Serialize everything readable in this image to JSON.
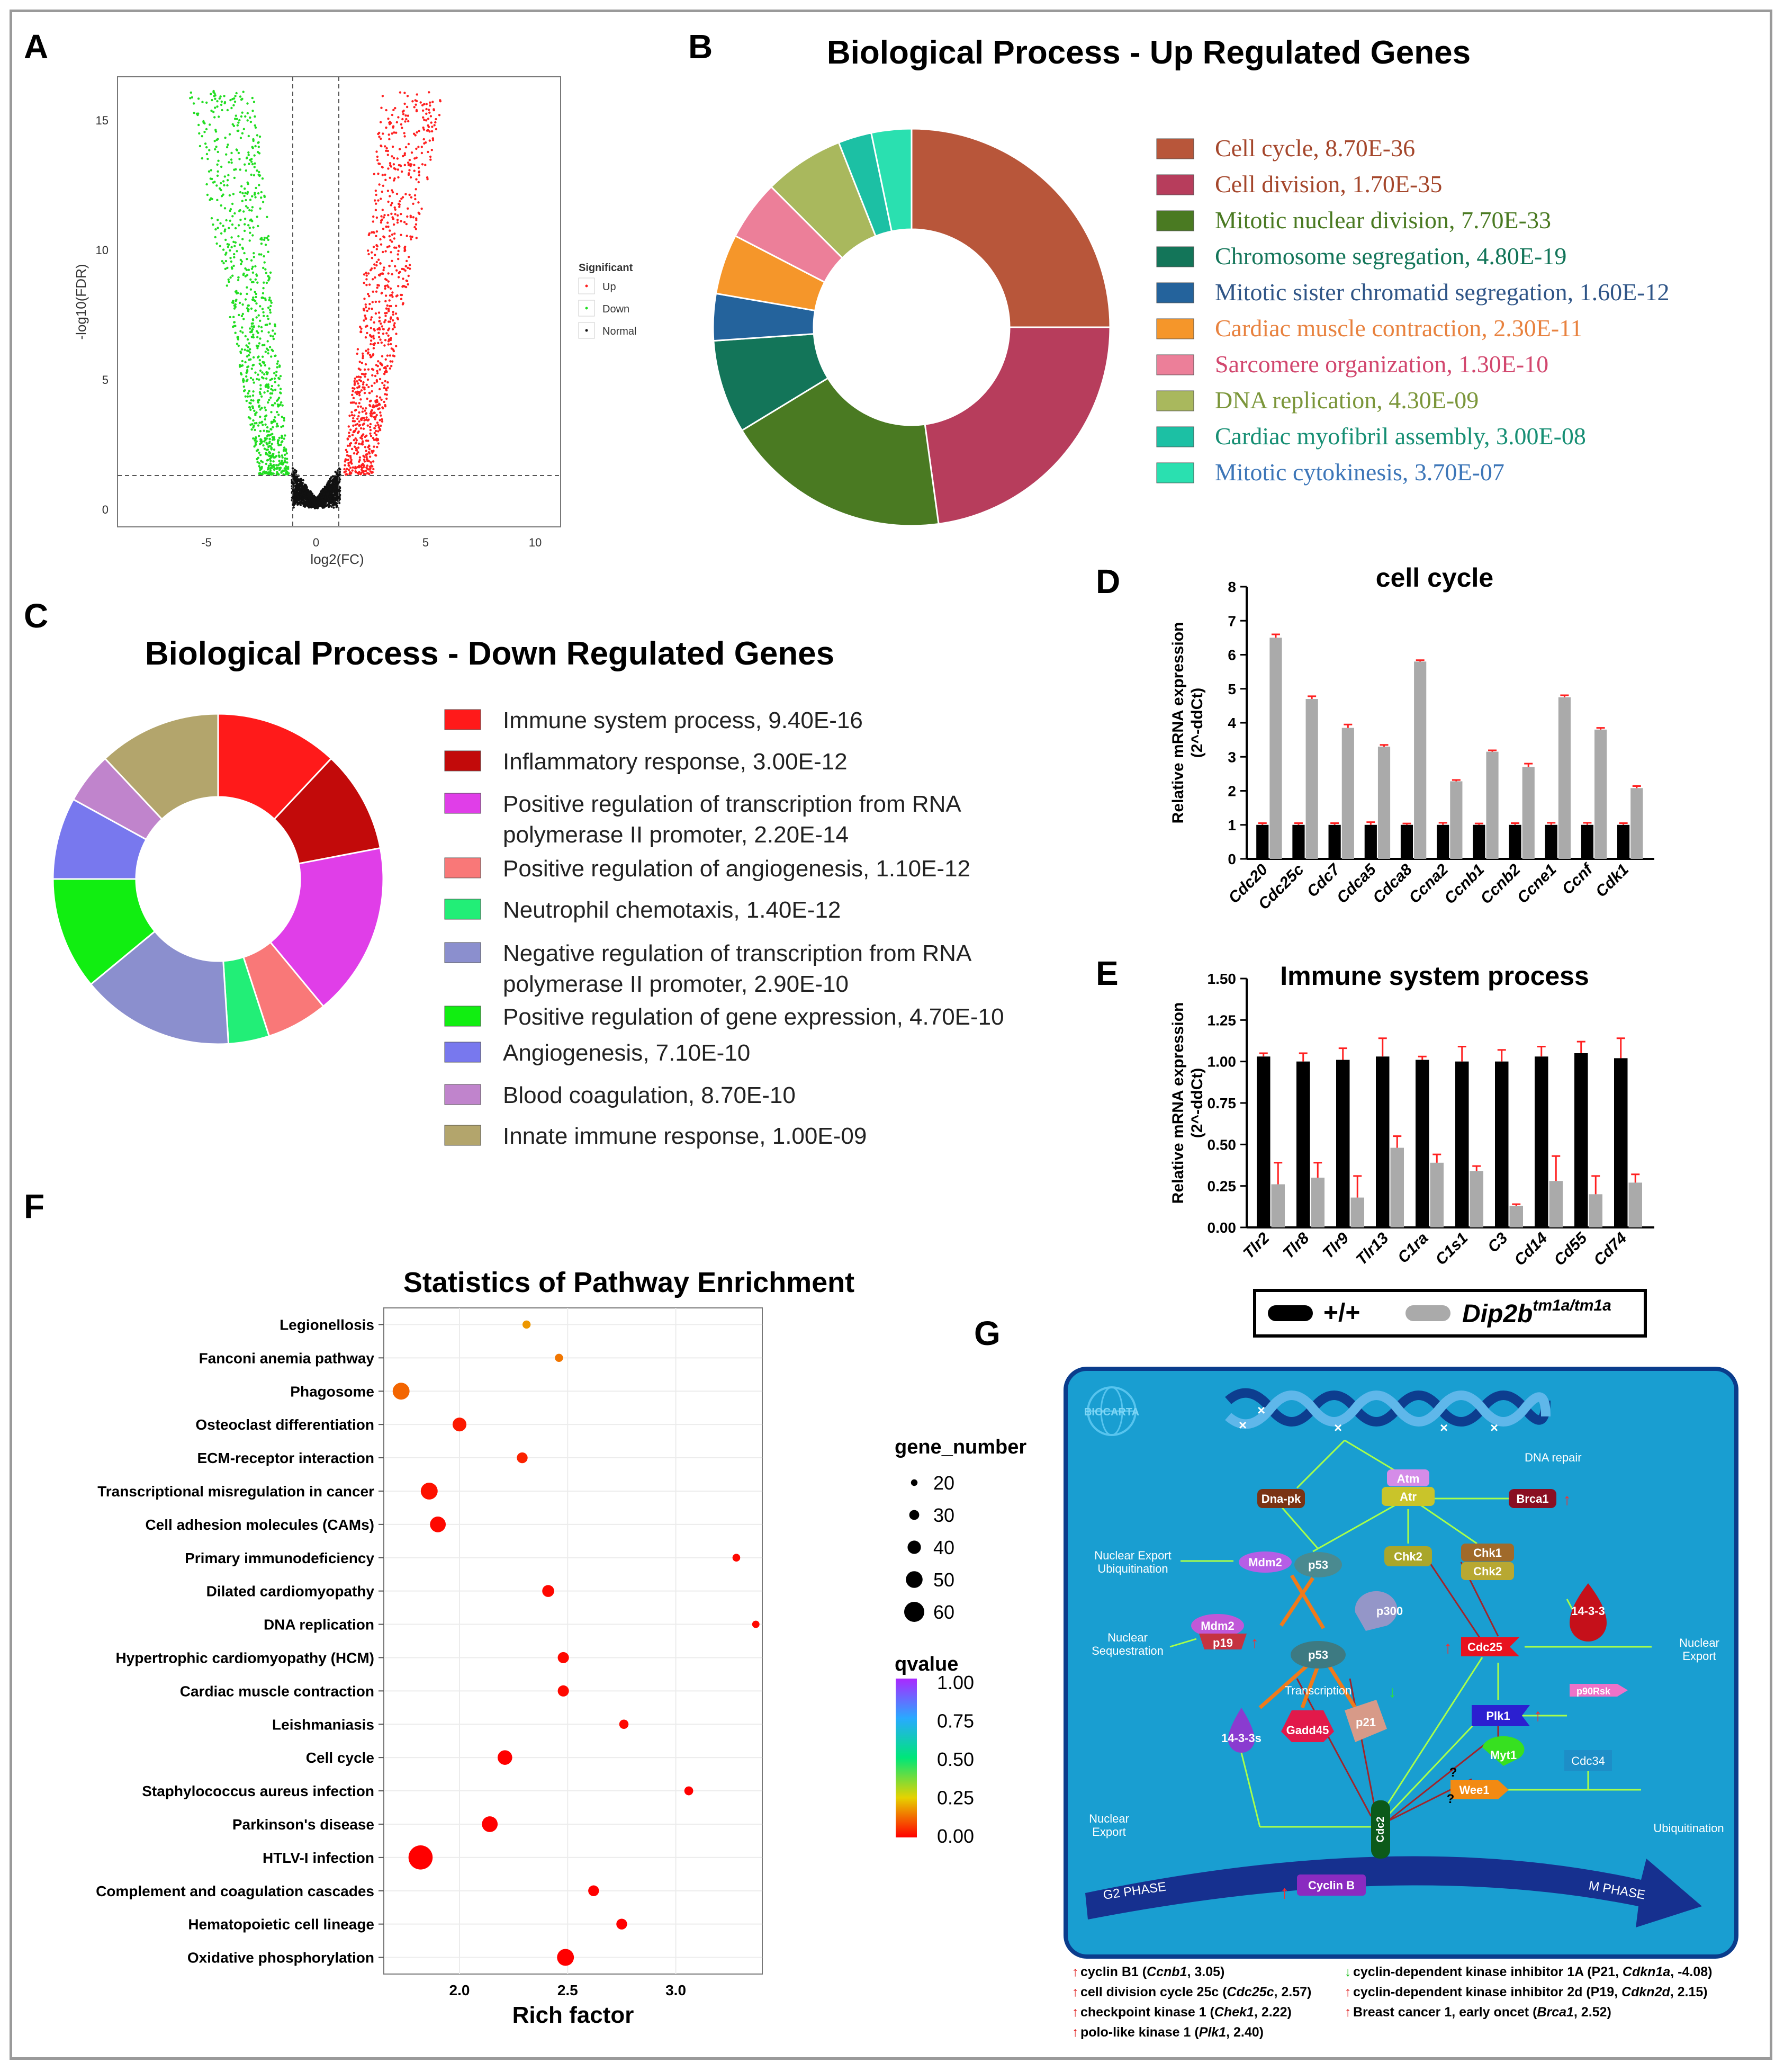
{
  "panels": {
    "a": "A",
    "b": "B",
    "c": "C",
    "d": "D",
    "e": "E",
    "f": "F",
    "g": "G"
  },
  "volcano": {
    "xlabel": "log2(FC)",
    "ylabel": "-log10(FDR)",
    "xticks": [
      "-5",
      "0",
      "5",
      "10"
    ],
    "yticks": [
      "0",
      "5",
      "10",
      "15"
    ],
    "legend_title": "Significant",
    "legend": [
      "Up",
      "Down",
      "Normal"
    ],
    "colors": {
      "up": "#ff2020",
      "down": "#22dd22",
      "normal": "#111111"
    }
  },
  "donut_up": {
    "title": "Biological Process - Up Regulated Genes",
    "items": [
      {
        "label": "Cell cycle, 8.70E-36",
        "value": 23,
        "color": "#b8563a",
        "text_color": "#a5472c"
      },
      {
        "label": "Cell division, 1.70E-35",
        "value": 21,
        "color": "#b73d5c",
        "text_color": "#a5472c"
      },
      {
        "label": "Mitotic nuclear division, 7.70E-33",
        "value": 17,
        "color": "#4a7a22",
        "text_color": "#4a7a22"
      },
      {
        "label": "Chromosome segregation, 4.80E-19",
        "value": 7,
        "color": "#137559",
        "text_color": "#137559"
      },
      {
        "label": "Mitotic sister chromatid segregation, 1.60E-12",
        "value": 3.5,
        "color": "#24639c",
        "text_color": "#2f5587"
      },
      {
        "label": "Cardiac muscle contraction, 2.30E-11",
        "value": 4.5,
        "color": "#f5962a",
        "text_color": "#e8823f"
      },
      {
        "label": "Sarcomere organization, 1.30E-10",
        "value": 4.5,
        "color": "#ec7f99",
        "text_color": "#d2476e"
      },
      {
        "label": "DNA replication, 4.30E-09",
        "value": 6,
        "color": "#a9b85d",
        "text_color": "#7b963a"
      },
      {
        "label": "Cardiac myofibril assembly, 3.00E-08",
        "value": 2.5,
        "color": "#1cc0a4",
        "text_color": "#178f74"
      },
      {
        "label": "Mitotic cytokinesis, 3.70E-07",
        "value": 3,
        "color": "#2ae0b0",
        "text_color": "#3d76b8"
      }
    ]
  },
  "donut_down": {
    "title": "Biological Process - Down Regulated Genes",
    "items": [
      {
        "label": "Immune system process, 9.40E-16",
        "value": 12,
        "color": "#ff1a1a"
      },
      {
        "label": "Inflammatory response, 3.00E-12",
        "value": 10,
        "color": "#c20a0a"
      },
      {
        "label": "Positive regulation of transcription from RNA polymerase II promoter, 2.20E-14",
        "value": 17,
        "color": "#e03ee8"
      },
      {
        "label": "Positive regulation of angiogenesis, 1.10E-12",
        "value": 6,
        "color": "#f97878"
      },
      {
        "label": "Neutrophil chemotaxis, 1.40E-12",
        "value": 4,
        "color": "#22ee77"
      },
      {
        "label": "Negative regulation of transcription from RNA polymerase II promoter, 2.90E-10",
        "value": 15,
        "color": "#8b8fce"
      },
      {
        "label": "Positive regulation of gene expression, 4.70E-10",
        "value": 11,
        "color": "#11ee11"
      },
      {
        "label": "Angiogenesis, 7.10E-10",
        "value": 8,
        "color": "#7878ee"
      },
      {
        "label": "Blood coagulation, 8.70E-10",
        "value": 5,
        "color": "#c084cc"
      },
      {
        "label": "Innate immune response, 1.00E-09",
        "value": 12,
        "color": "#b3a56c"
      }
    ],
    "label_lines": [
      [
        "Immune system process, 9.40E-16"
      ],
      [
        "Inflammatory response, 3.00E-12"
      ],
      [
        "Positive regulation of transcription from RNA",
        "polymerase II promoter, 2.20E-14"
      ],
      [
        "Positive regulation of angiogenesis, 1.10E-12"
      ],
      [
        "Neutrophil chemotaxis, 1.40E-12"
      ],
      [
        "Negative regulation of transcription from RNA",
        "polymerase II promoter, 2.90E-10"
      ],
      [
        "Positive regulation of gene expression, 4.70E-10"
      ],
      [
        "Angiogenesis, 7.10E-10"
      ],
      [
        "Blood coagulation, 8.70E-10"
      ],
      [
        "Innate immune response, 1.00E-09"
      ]
    ]
  },
  "chart_data": [
    {
      "type": "bar",
      "title": "cell cycle",
      "ylabel": "Relative mRNA expression (2^-ddCt)",
      "ylabel_lines": [
        "Relative mRNA expression",
        "(2^-ddCt)"
      ],
      "ylim": [
        0,
        8
      ],
      "yticks": [
        0,
        1,
        2,
        3,
        4,
        5,
        6,
        7,
        8
      ],
      "categories": [
        "Cdc20",
        "Cdc25c",
        "Cdc7",
        "Cdca5",
        "Cdca8",
        "Ccna2",
        "Ccnb1",
        "Ccnb2",
        "Ccne1",
        "Ccnf",
        "Cdk1"
      ],
      "series": [
        {
          "name": "+/+",
          "values": [
            1,
            1,
            1,
            1,
            1,
            1,
            1,
            1,
            1,
            1,
            1
          ],
          "err": [
            0.05,
            0.05,
            0.05,
            0.08,
            0.04,
            0.06,
            0.04,
            0.05,
            0.06,
            0.06,
            0.05
          ]
        },
        {
          "name": "Dip2b tm1a/tm1a",
          "values": [
            6.5,
            4.7,
            3.85,
            3.3,
            5.8,
            2.28,
            3.15,
            2.7,
            4.75,
            3.8,
            2.08
          ],
          "err": [
            0.1,
            0.08,
            0.1,
            0.05,
            0.04,
            0.04,
            0.04,
            0.1,
            0.06,
            0.05,
            0.06
          ]
        }
      ]
    },
    {
      "type": "bar",
      "title": "Immune system process",
      "ylabel": "Relative mRNA expression (2^-ddCt)",
      "ylabel_lines": [
        "Relative mRNA expression",
        "(2^-ddCt)"
      ],
      "ylim": [
        0,
        1.5
      ],
      "yticks": [
        "0.00",
        "0.25",
        "0.50",
        "0.75",
        "1.00",
        "1.25",
        "1.50"
      ],
      "categories": [
        "Tlr2",
        "Tlr8",
        "Tlr9",
        "Tlr13",
        "C1ra",
        "C1s1",
        "C3",
        "Cd14",
        "Cd55",
        "Cd74"
      ],
      "series": [
        {
          "name": "+/+",
          "values": [
            1.03,
            1.0,
            1.01,
            1.03,
            1.01,
            1.0,
            1.0,
            1.03,
            1.05,
            1.02
          ],
          "err": [
            0.02,
            0.05,
            0.07,
            0.11,
            0.02,
            0.09,
            0.07,
            0.06,
            0.07,
            0.12
          ]
        },
        {
          "name": "Dip2b tm1a/tm1a",
          "values": [
            0.26,
            0.3,
            0.18,
            0.48,
            0.39,
            0.34,
            0.13,
            0.28,
            0.2,
            0.27
          ],
          "err": [
            0.13,
            0.09,
            0.13,
            0.07,
            0.05,
            0.03,
            0.01,
            0.15,
            0.11,
            0.05
          ]
        }
      ]
    },
    {
      "type": "scatter",
      "title": "Statistics of Pathway Enrichment",
      "xlabel": "Rich factor",
      "xlim": [
        1.65,
        3.4
      ],
      "xticks": [
        "2.0",
        "2.5",
        "3.0"
      ],
      "size_legend_title": "gene_number",
      "size_legend": [
        20,
        30,
        40,
        50,
        60
      ],
      "color_legend_title": "qvalue",
      "color_ticks": [
        "1.00",
        "0.75",
        "0.50",
        "0.25",
        "0.00"
      ],
      "points": [
        {
          "term": "Legionellosis",
          "x": 2.31,
          "size": 13,
          "q": 0.18
        },
        {
          "term": "Fanconi anemia pathway",
          "x": 2.46,
          "size": 13,
          "q": 0.14
        },
        {
          "term": "Phagosome",
          "x": 1.73,
          "size": 36,
          "q": 0.12
        },
        {
          "term": "Osteoclast differentiation",
          "x": 2.0,
          "size": 28,
          "q": 0.03
        },
        {
          "term": "ECM-receptor interaction",
          "x": 2.29,
          "size": 20,
          "q": 0.04
        },
        {
          "term": "Transcriptional misregulation in cancer",
          "x": 1.86,
          "size": 36,
          "q": 0.02
        },
        {
          "term": "Cell adhesion molecules (CAMs)",
          "x": 1.9,
          "size": 33,
          "q": 0.01
        },
        {
          "term": "Primary immunodeficiency",
          "x": 3.28,
          "size": 12,
          "q": 0.01
        },
        {
          "term": "Dilated cardiomyopathy",
          "x": 2.41,
          "size": 23,
          "q": 0.01
        },
        {
          "term": "DNA replication",
          "x": 3.37,
          "size": 11,
          "q": 0.01
        },
        {
          "term": "Hypertrophic cardiomyopathy (HCM)",
          "x": 2.48,
          "size": 21,
          "q": 0.01
        },
        {
          "term": "Cardiac muscle contraction",
          "x": 2.48,
          "size": 21,
          "q": 0.01
        },
        {
          "term": "Leishmaniasis",
          "x": 2.76,
          "size": 16,
          "q": 0.01
        },
        {
          "term": "Cell cycle",
          "x": 2.21,
          "size": 30,
          "q": 0.0
        },
        {
          "term": "Staphylococcus aureus infection",
          "x": 3.06,
          "size": 15,
          "q": 0.0
        },
        {
          "term": "Parkinson's disease",
          "x": 2.14,
          "size": 33,
          "q": 0.0
        },
        {
          "term": "HTLV-I infection",
          "x": 1.82,
          "size": 55,
          "q": 0.0
        },
        {
          "term": "Complement and coagulation cascades",
          "x": 2.62,
          "size": 20,
          "q": 0.0
        },
        {
          "term": "Hematopoietic cell lineage",
          "x": 2.75,
          "size": 20,
          "q": 0.0
        },
        {
          "term": "Oxidative phosphorylation",
          "x": 2.49,
          "size": 36,
          "q": 0.0
        }
      ]
    }
  ],
  "bar_legend": {
    "wt": "+/+",
    "mut": "Dip2b",
    "mut_sup": "tm1a/tm1a"
  },
  "pathway": {
    "logo": "BIOCARTA",
    "labels": {
      "dna_repair": "DNA repair",
      "dnapk": "Dna-pk",
      "atm": "Atm",
      "atr": "Atr",
      "brca1": "Brca1",
      "mdm2": "Mdm2",
      "p53": "p53",
      "chk2": "Chk2",
      "chk1": "Chk1",
      "chk2b": "Chk2",
      "p300": "p300",
      "p19": "p19",
      "cdc25": "Cdc25",
      "x1433": "14-3-3",
      "x1433s": "14-3-3s",
      "gadd45": "Gadd45",
      "p21": "p21",
      "plk1": "Plk1",
      "rb": "p90Rsk",
      "myt1": "Myt1",
      "cdc34": "Cdc34",
      "wee1": "Wee1",
      "cdc2": "Cdc2",
      "cyclinb": "Cyclin B",
      "transcription": "Transcription",
      "q1": "?",
      "q2": "?",
      "nuc_export_ubiq_1": "Nuclear Export",
      "nuc_export_ubiq_2": "Ubiquitination",
      "nuc_seq_1": "Nuclear",
      "nuc_seq_2": "Sequestration",
      "nuc_export_r_1": "Nuclear",
      "nuc_export_r_2": "Export",
      "nuc_export_l_1": "Nuclear",
      "nuc_export_l_2": "Export",
      "ubiq": "Ubiquitination",
      "g2": "G2 PHASE",
      "m": "M PHASE"
    },
    "footnotes_left": [
      {
        "text": "cyclin B1 (",
        "gene": "Ccnb1",
        "val": ", 3.05)",
        "arrow": "up"
      },
      {
        "text": "cell division cycle 25c (",
        "gene": "Cdc25c",
        "val": ", 2.57)",
        "arrow": "up"
      },
      {
        "text": "checkpoint kinase 1 (",
        "gene": "Chek1",
        "val": ", 2.22)",
        "arrow": "up"
      },
      {
        "text": "polo-like kinase 1 (",
        "gene": "Plk1",
        "val": ", 2.40)",
        "arrow": "up"
      }
    ],
    "footnotes_right": [
      {
        "text": "cyclin-dependent kinase inhibitor 1A (P21, ",
        "gene": "Cdkn1a",
        "val": ",  -4.08)",
        "arrow": "down"
      },
      {
        "text": "cyclin-dependent kinase inhibitor 2d (P19, ",
        "gene": "Cdkn2d",
        "val": ",  2.15)",
        "arrow": "up"
      },
      {
        "text": "Breast cancer 1, early oncet (",
        "gene": "Brca1",
        "val": ", 2.52)",
        "arrow": "up"
      }
    ]
  }
}
